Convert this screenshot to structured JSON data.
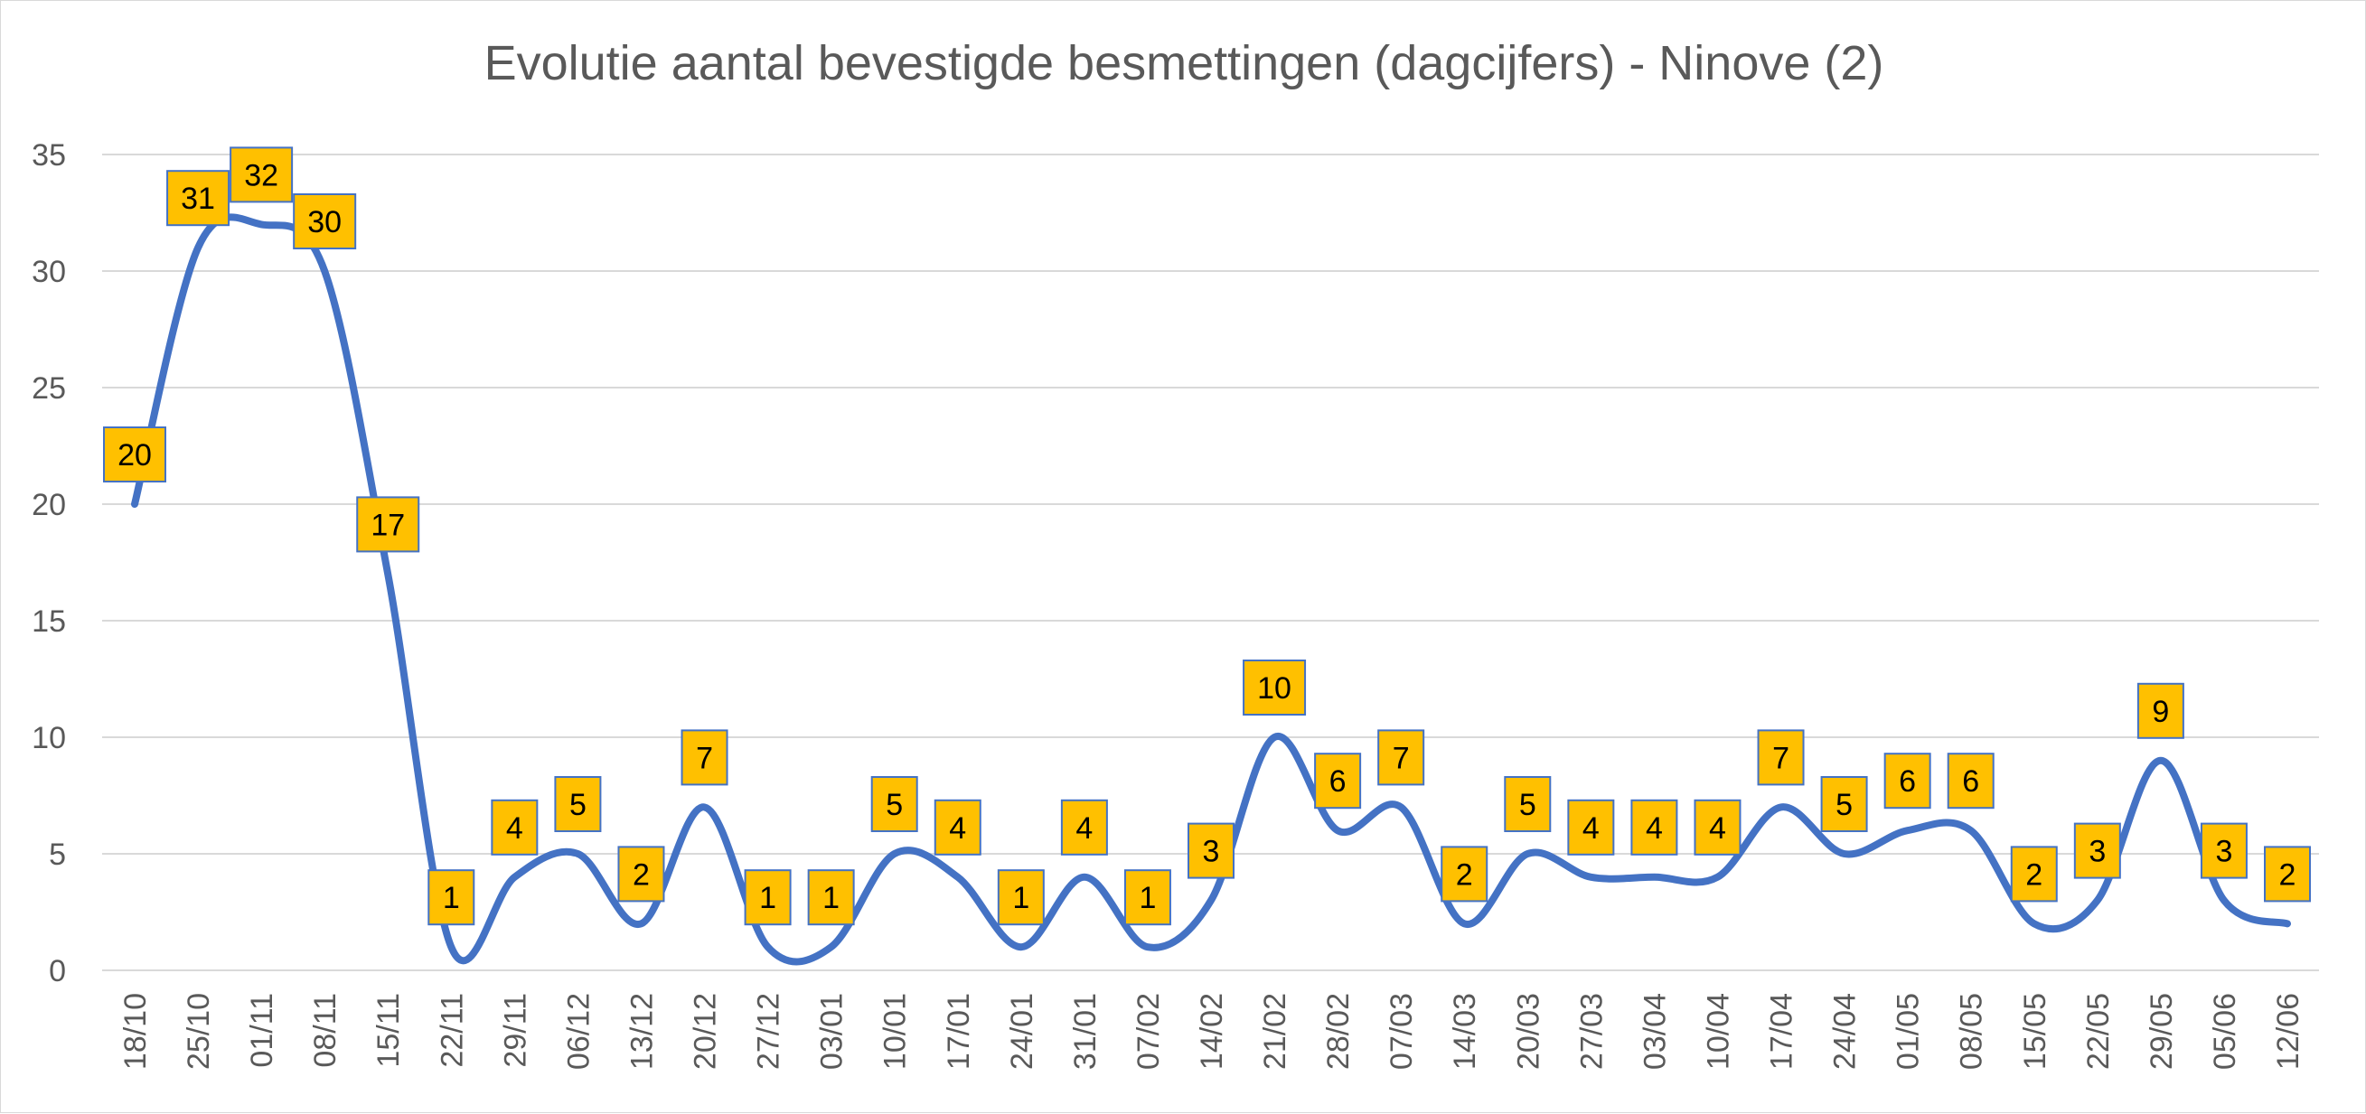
{
  "chart_data": {
    "type": "line",
    "title": "Evolutie aantal bevestigde besmettingen (dagcijfers) - Ninove (2)",
    "xlabel": "",
    "ylabel": "",
    "ylim": [
      0,
      35
    ],
    "yticks": [
      0,
      5,
      10,
      15,
      20,
      25,
      30,
      35
    ],
    "grid": true,
    "smooth": true,
    "categories": [
      "18/10",
      "25/10",
      "01/11",
      "08/11",
      "15/11",
      "22/11",
      "29/11",
      "06/12",
      "13/12",
      "20/12",
      "27/12",
      "03/01",
      "10/01",
      "17/01",
      "24/01",
      "31/01",
      "07/02",
      "14/02",
      "21/02",
      "28/02",
      "07/03",
      "14/03",
      "20/03",
      "27/03",
      "03/04",
      "10/04",
      "17/04",
      "24/04",
      "01/05",
      "08/05",
      "15/05",
      "22/05",
      "29/05",
      "05/06",
      "12/06"
    ],
    "series": [
      {
        "name": "Ninove",
        "values": [
          20,
          31,
          32,
          30,
          17,
          1,
          4,
          5,
          2,
          7,
          1,
          1,
          5,
          4,
          1,
          4,
          1,
          3,
          10,
          6,
          7,
          2,
          5,
          4,
          4,
          4,
          7,
          5,
          6,
          6,
          2,
          3,
          9,
          3,
          2
        ]
      }
    ],
    "colors": {
      "line": "#4472C4",
      "label_fill": "#FFC000",
      "label_border": "#4472C4",
      "grid": "#d9d9d9",
      "text": "#595959"
    }
  }
}
